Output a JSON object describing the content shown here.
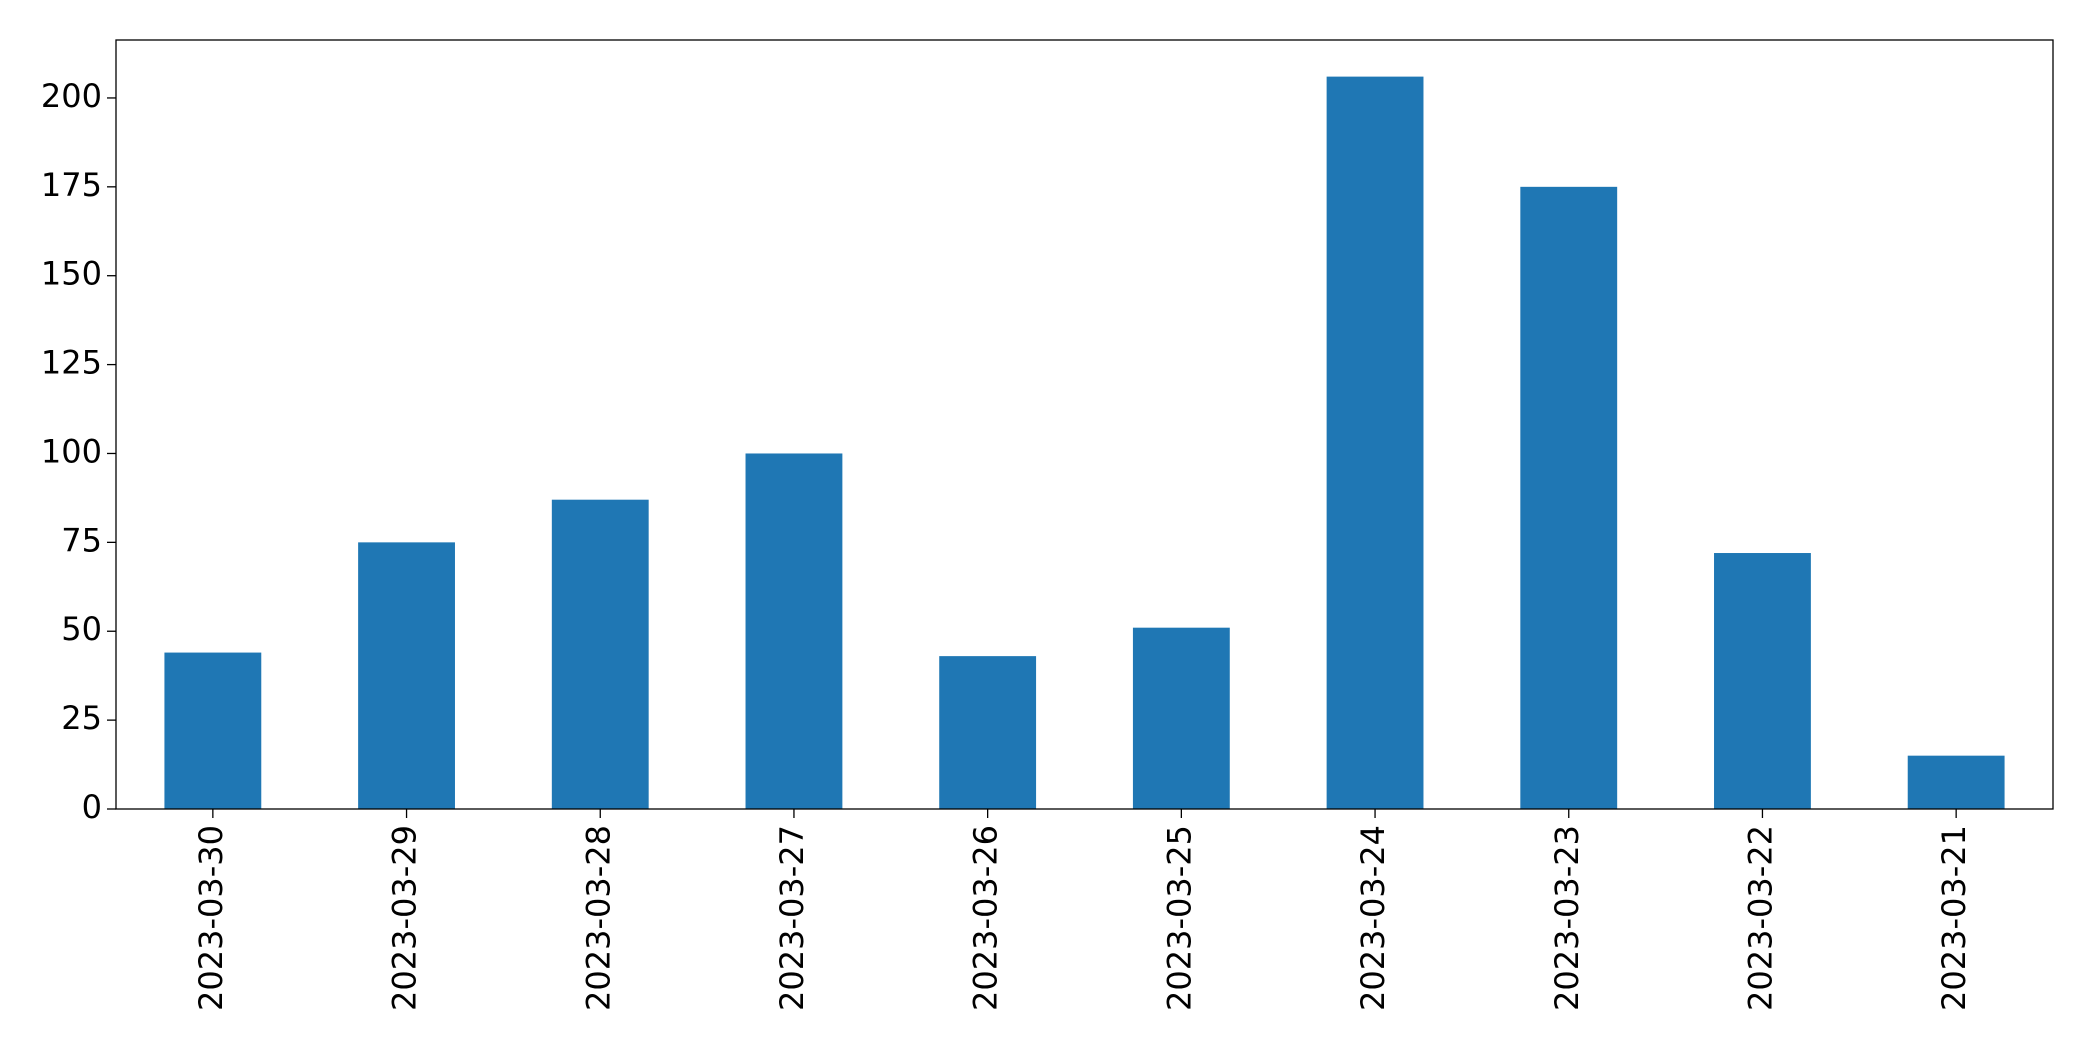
{
  "chart_data": {
    "type": "bar",
    "categories": [
      "2023-03-30",
      "2023-03-29",
      "2023-03-28",
      "2023-03-27",
      "2023-03-26",
      "2023-03-25",
      "2023-03-24",
      "2023-03-23",
      "2023-03-22",
      "2023-03-21"
    ],
    "values": [
      44,
      75,
      87,
      100,
      43,
      51,
      206,
      175,
      72,
      15
    ],
    "color": "#1f77b4",
    "ylim": [
      0,
      216.3
    ],
    "yticks": [
      0,
      25,
      50,
      75,
      100,
      125,
      150,
      175,
      200
    ],
    "grid": false
  }
}
